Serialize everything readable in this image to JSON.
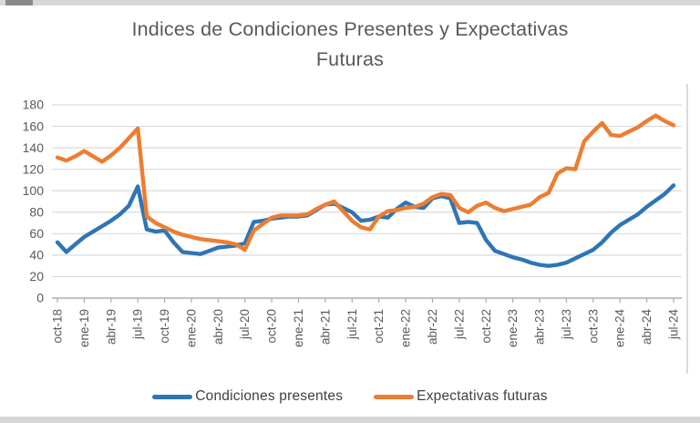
{
  "title": {
    "line1": "Indices de Condiciones Presentes y Expectativas",
    "line2": "Futuras"
  },
  "chart_data": {
    "type": "line",
    "title": "Indices de Condiciones Presentes y Expectativas Futuras",
    "x": [
      "oct-18",
      "nov-18",
      "dic-18",
      "ene-19",
      "feb-19",
      "mar-19",
      "abr-19",
      "may-19",
      "jun-19",
      "jul-19",
      "ago-19",
      "sep-19",
      "oct-19",
      "nov-19",
      "dic-19",
      "ene-20",
      "feb-20",
      "mar-20",
      "abr-20",
      "may-20",
      "jun-20",
      "jul-20",
      "ago-20",
      "sep-20",
      "oct-20",
      "nov-20",
      "dic-20",
      "ene-21",
      "feb-21",
      "mar-21",
      "abr-21",
      "may-21",
      "jun-21",
      "jul-21",
      "ago-21",
      "sep-21",
      "oct-21",
      "nov-21",
      "dic-21",
      "ene-22",
      "feb-22",
      "mar-22",
      "abr-22",
      "may-22",
      "jun-22",
      "jul-22",
      "ago-22",
      "sep-22",
      "oct-22",
      "nov-22",
      "dic-22",
      "ene-23",
      "feb-23",
      "mar-23",
      "abr-23",
      "may-23",
      "jun-23",
      "jul-23",
      "ago-23",
      "sep-23",
      "oct-23",
      "nov-23",
      "dic-23",
      "ene-24",
      "feb-24",
      "mar-24",
      "abr-24",
      "may-24",
      "jun-24",
      "jul-24"
    ],
    "x_label_every": 3,
    "x_labels_shown": [
      "oct-18",
      "ene-19",
      "abr-19",
      "jul-19",
      "oct-19",
      "ene-20",
      "abr-20",
      "jul-20",
      "oct-20",
      "ene-21",
      "abr-21",
      "jul-21",
      "oct-21",
      "ene-22",
      "abr-22",
      "jul-22",
      "oct-22",
      "ene-23",
      "abr-23",
      "jul-23",
      "oct-23",
      "ene-24",
      "abr-24",
      "jul-24"
    ],
    "ylim": [
      0,
      180
    ],
    "y_ticks": [
      0,
      20,
      40,
      60,
      80,
      100,
      120,
      140,
      160,
      180
    ],
    "grid": true,
    "legend_position": "bottom",
    "axis_text_color": "#595959",
    "gridline_color": "#d9d9d9",
    "axis_line_color": "#adadad",
    "series": [
      {
        "name": "Condiciones presentes",
        "color": "#2E75B6",
        "values": [
          52,
          43,
          50,
          57,
          62,
          67,
          72,
          78,
          86,
          104,
          64,
          62,
          63,
          52,
          43,
          42,
          41,
          44,
          47,
          48,
          49,
          51,
          71,
          72,
          74,
          75,
          76,
          76,
          77,
          82,
          87,
          88,
          84,
          80,
          72,
          73,
          76,
          75,
          83,
          89,
          85,
          84,
          93,
          95,
          93,
          70,
          71,
          70,
          54,
          44,
          41,
          38,
          36,
          33,
          31,
          30,
          31,
          33,
          37,
          41,
          45,
          52,
          61,
          68,
          73,
          78,
          85,
          91,
          97,
          105
        ]
      },
      {
        "name": "Expectativas futuras",
        "color": "#ED7D31",
        "values": [
          131,
          128,
          132,
          137,
          132,
          127,
          133,
          140,
          149,
          158,
          76,
          70,
          66,
          62,
          59,
          57,
          55,
          54,
          53,
          52,
          50,
          45,
          63,
          69,
          75,
          77,
          77,
          77,
          78,
          83,
          87,
          90,
          81,
          72,
          66,
          64,
          76,
          81,
          82,
          84,
          85,
          88,
          94,
          97,
          96,
          84,
          80,
          86,
          89,
          84,
          81,
          83,
          85,
          87,
          94,
          98,
          116,
          121,
          120,
          146,
          155,
          163,
          152,
          151,
          155,
          159,
          165,
          170,
          165,
          161
        ]
      }
    ]
  },
  "legend": {
    "item1": "Condiciones presentes",
    "item2": "Expectativas futuras"
  }
}
